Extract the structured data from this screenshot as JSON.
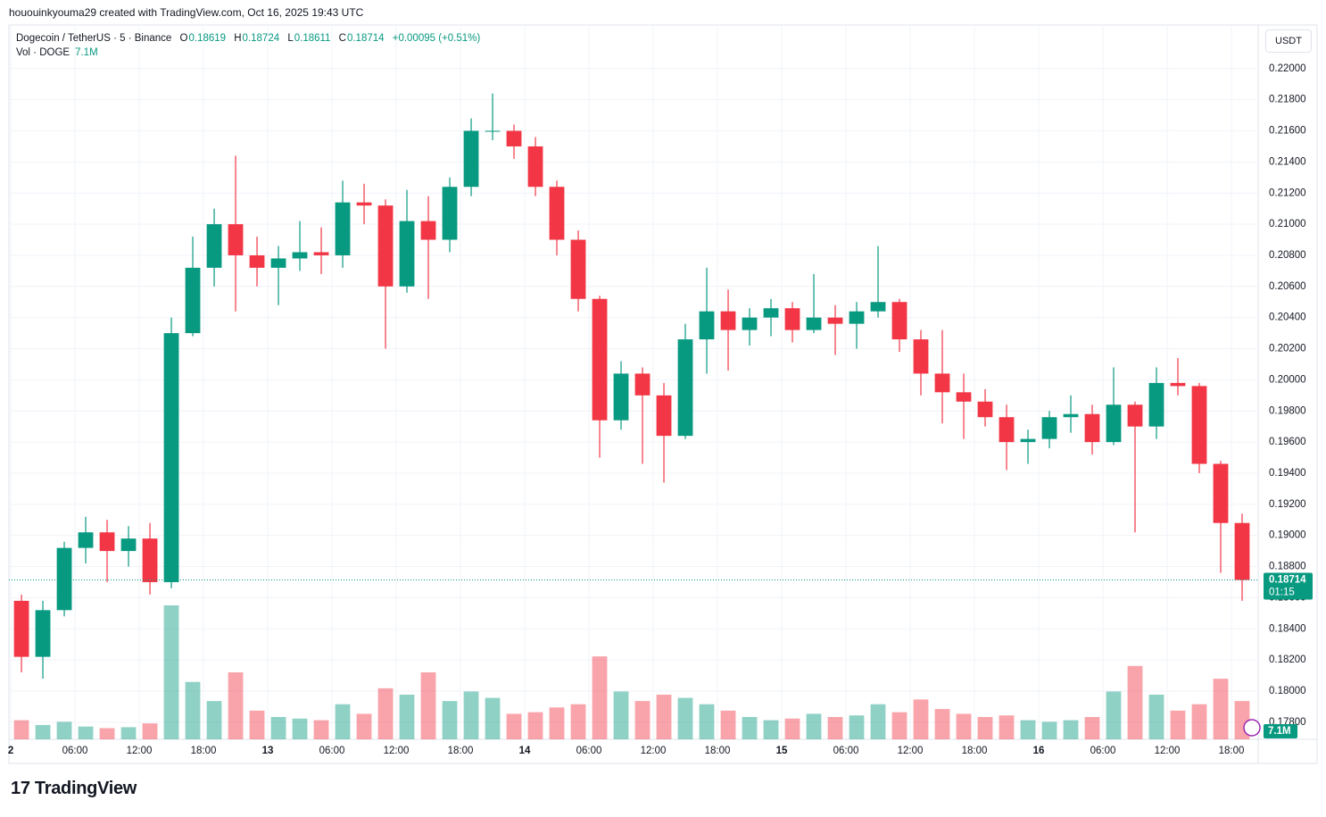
{
  "header": {
    "credit": "hououinkyouma29 created with TradingView.com, Oct 16, 2025 19:43 UTC",
    "symbol": "Dogecoin / TetherUS · 5 · Binance",
    "o_label": "O",
    "o": "0.18619",
    "h_label": "H",
    "h": "0.18724",
    "l_label": "L",
    "l": "0.18611",
    "c_label": "C",
    "c": "0.18714",
    "change": "+0.00095 (+0.51%)",
    "vol_label": "Vol · DOGE",
    "vol": "7.1M",
    "currency": "USDT",
    "countdown": "01:15",
    "brand": "TradingView"
  },
  "chart_data": {
    "type": "candlestick",
    "up_color": "#089981",
    "down_color": "#f23645",
    "volume_up_color": "rgba(8,153,129,0.45)",
    "volume_down_color": "rgba(242,54,69,0.45)",
    "grid": true,
    "x": [
      1,
      3,
      5,
      7,
      9,
      11,
      13,
      15,
      17,
      19,
      21,
      23,
      25,
      27,
      29,
      31,
      33,
      35,
      37,
      39,
      41,
      43,
      45,
      47,
      49,
      51,
      53,
      55,
      57,
      59,
      61,
      63,
      65,
      67,
      69,
      71,
      73,
      75,
      77,
      79,
      81,
      83,
      85,
      87,
      89,
      91,
      93,
      95,
      97,
      99,
      101,
      103,
      105,
      107,
      109,
      111,
      113,
      115
    ],
    "open": [
      0.1858,
      0.1822,
      0.1852,
      0.1892,
      0.1902,
      0.189,
      0.1898,
      0.187,
      0.203,
      0.2072,
      0.21,
      0.208,
      0.2072,
      0.2078,
      0.2082,
      0.208,
      0.2114,
      0.2112,
      0.206,
      0.2102,
      0.209,
      0.2124,
      0.216,
      0.216,
      0.215,
      0.2124,
      0.209,
      0.2052,
      0.1974,
      0.2004,
      0.199,
      0.1964,
      0.2026,
      0.2044,
      0.2032,
      0.204,
      0.2046,
      0.2032,
      0.204,
      0.2036,
      0.2044,
      0.205,
      0.2026,
      0.2004,
      0.1992,
      0.1986,
      0.1976,
      0.196,
      0.1962,
      0.1976,
      0.1978,
      0.196,
      0.1984,
      0.197,
      0.1998,
      0.1996,
      0.1946,
      0.1908
    ],
    "high": [
      0.1862,
      0.1858,
      0.1896,
      0.1912,
      0.191,
      0.1906,
      0.1908,
      0.204,
      0.2092,
      0.211,
      0.2144,
      0.2092,
      0.2086,
      0.2102,
      0.2098,
      0.2128,
      0.2126,
      0.2116,
      0.2122,
      0.2118,
      0.213,
      0.2168,
      0.2184,
      0.2164,
      0.2156,
      0.2128,
      0.2096,
      0.2054,
      0.2012,
      0.2008,
      0.1998,
      0.2036,
      0.2072,
      0.2058,
      0.2046,
      0.2052,
      0.205,
      0.2068,
      0.2048,
      0.205,
      0.2086,
      0.2052,
      0.2032,
      0.2032,
      0.2004,
      0.1994,
      0.1984,
      0.1968,
      0.198,
      0.199,
      0.1984,
      0.2008,
      0.1986,
      0.2008,
      0.2014,
      0.1998,
      0.1948,
      0.1914
    ],
    "low": [
      0.1812,
      0.1808,
      0.1848,
      0.1882,
      0.187,
      0.188,
      0.1862,
      0.1866,
      0.2028,
      0.206,
      0.2044,
      0.206,
      0.2048,
      0.207,
      0.2068,
      0.2072,
      0.21,
      0.202,
      0.2056,
      0.2052,
      0.2082,
      0.2118,
      0.2154,
      0.2142,
      0.2118,
      0.208,
      0.2044,
      0.195,
      0.1968,
      0.1946,
      0.1934,
      0.1962,
      0.2004,
      0.2006,
      0.2022,
      0.2028,
      0.2024,
      0.203,
      0.2016,
      0.202,
      0.204,
      0.2018,
      0.199,
      0.1972,
      0.1962,
      0.197,
      0.1942,
      0.1946,
      0.1956,
      0.1966,
      0.1952,
      0.1958,
      0.1902,
      0.1962,
      0.199,
      0.194,
      0.1876,
      0.1858
    ],
    "close": [
      0.1822,
      0.1852,
      0.1892,
      0.1902,
      0.189,
      0.1898,
      0.187,
      0.203,
      0.2072,
      0.21,
      0.208,
      0.2072,
      0.2078,
      0.2082,
      0.208,
      0.2114,
      0.2112,
      0.206,
      0.2102,
      0.209,
      0.2124,
      0.216,
      0.216,
      0.215,
      0.2124,
      0.209,
      0.2052,
      0.1974,
      0.2004,
      0.199,
      0.1964,
      0.2026,
      0.2044,
      0.2032,
      0.204,
      0.2046,
      0.2032,
      0.204,
      0.2036,
      0.2044,
      0.205,
      0.2026,
      0.2004,
      0.1992,
      0.1986,
      0.1976,
      0.196,
      0.1962,
      0.1976,
      0.1978,
      0.196,
      0.1984,
      0.197,
      0.1998,
      0.1996,
      0.1946,
      0.1908,
      0.18714
    ],
    "volume": [
      60,
      45,
      55,
      40,
      35,
      38,
      50,
      420,
      180,
      120,
      210,
      90,
      70,
      65,
      60,
      110,
      80,
      160,
      140,
      210,
      120,
      150,
      130,
      80,
      85,
      100,
      110,
      260,
      150,
      120,
      140,
      130,
      110,
      90,
      70,
      60,
      65,
      80,
      70,
      75,
      110,
      85,
      125,
      95,
      80,
      70,
      75,
      60,
      55,
      60,
      70,
      150,
      230,
      140,
      90,
      110,
      190,
      120
    ],
    "xlim": [
      -0.17,
      116.5
    ],
    "xticks": [
      {
        "value": 0,
        "label": "2"
      },
      {
        "value": 6,
        "label": "06:00"
      },
      {
        "value": 12,
        "label": "12:00"
      },
      {
        "value": 18,
        "label": "18:00"
      },
      {
        "value": 24,
        "label": "13"
      },
      {
        "value": 30,
        "label": "06:00"
      },
      {
        "value": 36,
        "label": "12:00"
      },
      {
        "value": 42,
        "label": "18:00"
      },
      {
        "value": 48,
        "label": "14"
      },
      {
        "value": 54,
        "label": "06:00"
      },
      {
        "value": 60,
        "label": "12:00"
      },
      {
        "value": 66,
        "label": "18:00"
      },
      {
        "value": 72,
        "label": "15"
      },
      {
        "value": 78,
        "label": "06:00"
      },
      {
        "value": 84,
        "label": "12:00"
      },
      {
        "value": 90,
        "label": "18:00"
      },
      {
        "value": 96,
        "label": "16"
      },
      {
        "value": 102,
        "label": "06:00"
      },
      {
        "value": 108,
        "label": "12:00"
      },
      {
        "value": 114,
        "label": "18:00"
      }
    ],
    "ylim": [
      0.1769,
      0.2228
    ],
    "yticks": [
      {
        "value": 0.178,
        "label": "0.17800"
      },
      {
        "value": 0.18,
        "label": "0.18000"
      },
      {
        "value": 0.182,
        "label": "0.18200"
      },
      {
        "value": 0.184,
        "label": "0.18400"
      },
      {
        "value": 0.186,
        "label": "0.18600"
      },
      {
        "value": 0.188,
        "label": "0.18800"
      },
      {
        "value": 0.19,
        "label": "0.19000"
      },
      {
        "value": 0.192,
        "label": "0.19200"
      },
      {
        "value": 0.194,
        "label": "0.19400"
      },
      {
        "value": 0.196,
        "label": "0.19600"
      },
      {
        "value": 0.198,
        "label": "0.19800"
      },
      {
        "value": 0.2,
        "label": "0.20000"
      },
      {
        "value": 0.202,
        "label": "0.20200"
      },
      {
        "value": 0.204,
        "label": "0.20400"
      },
      {
        "value": 0.206,
        "label": "0.20600"
      },
      {
        "value": 0.208,
        "label": "0.20800"
      },
      {
        "value": 0.21,
        "label": "0.21000"
      },
      {
        "value": 0.212,
        "label": "0.21200"
      },
      {
        "value": 0.214,
        "label": "0.21400"
      },
      {
        "value": 0.216,
        "label": "0.21600"
      },
      {
        "value": 0.218,
        "label": "0.21800"
      },
      {
        "value": 0.22,
        "label": "0.22000"
      }
    ]
  }
}
